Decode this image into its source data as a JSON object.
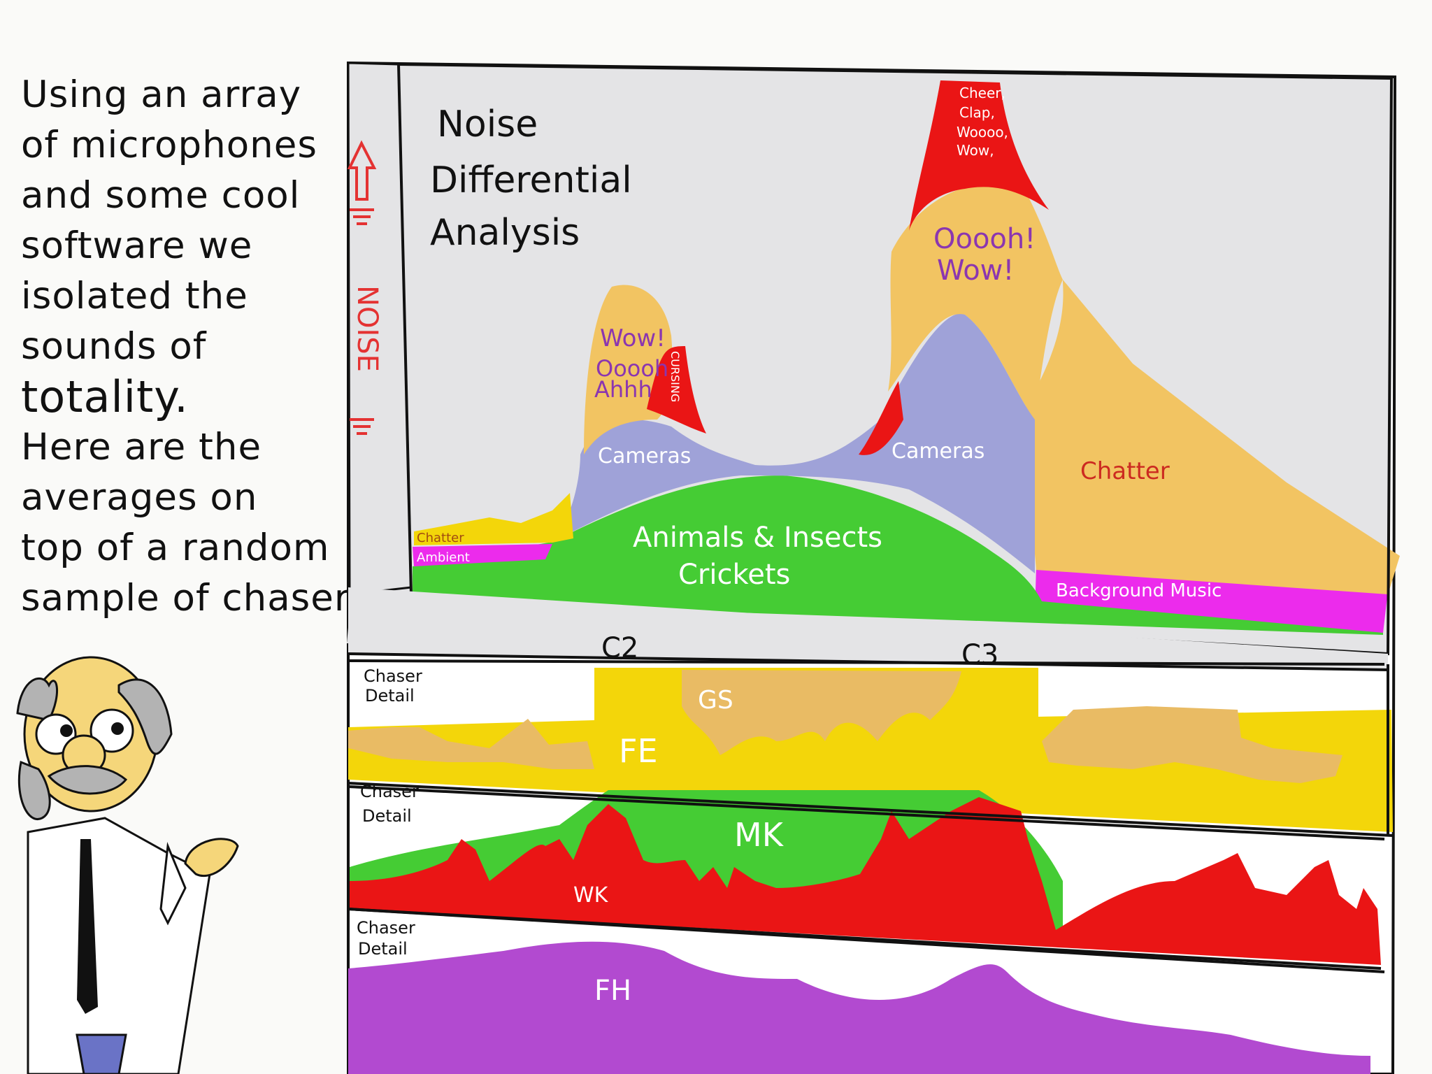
{
  "caption": {
    "lines": [
      "Using an array",
      "of microphones",
      "and some cool",
      "software we",
      "isolated the",
      "sounds of",
      "totality.",
      "Here are the",
      "averages on",
      "top of a random",
      "sample of chasers."
    ]
  },
  "chart": {
    "title_lines": [
      "Noise",
      "Differential",
      "Analysis"
    ],
    "y_axis": "NOISE",
    "layers": {
      "chatter_small": "Chatter",
      "ambient": "Ambient",
      "animals": [
        "Animals & Insects",
        "Crickets"
      ],
      "cameras_left": "Cameras",
      "cameras_right": "Cameras",
      "wow_left": [
        "Wow!",
        "Ooooh",
        "Ahhh"
      ],
      "cursing": "CURSING",
      "cheer": [
        "Cheer,",
        "Clap,",
        "Woooo,",
        "Wow,"
      ],
      "ooooh_wow": [
        "Ooooh!",
        "Wow!"
      ],
      "chatter_right": "Chatter",
      "background_music": "Background Music"
    },
    "markers": [
      "C2",
      "C3"
    ]
  },
  "detail_panels": [
    {
      "label": [
        "Chaser",
        "Detail"
      ],
      "areas": [
        "GS",
        "FE"
      ]
    },
    {
      "label": [
        "Chaser",
        "Detail"
      ],
      "areas": [
        "MK",
        "WK"
      ]
    },
    {
      "label": [
        "Chaser",
        "Detail"
      ],
      "areas": [
        "FH"
      ]
    }
  ],
  "colors": {
    "panel_bg": "#e4e4e6",
    "orange": "#f2c462",
    "lavender": "#9fa2d8",
    "green": "#45cc34",
    "red": "#ea1515",
    "magenta": "#ec2bec",
    "yellow": "#f3d60a",
    "tan": "#e9bb64",
    "purple": "#b24ad0",
    "word_purple": "#8b36b0"
  },
  "icons": [
    "up-arrow-icon",
    "professor-character"
  ]
}
